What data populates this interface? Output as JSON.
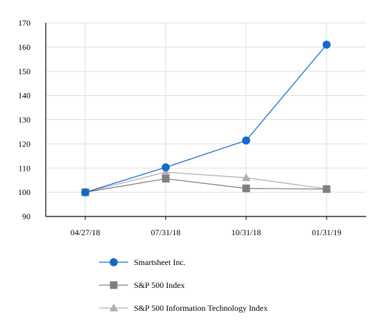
{
  "chart_data": {
    "type": "line",
    "categories": [
      "04/27/18",
      "07/31/18",
      "10/31/18",
      "01/31/19"
    ],
    "ylim": [
      90,
      170
    ],
    "yticks": [
      90,
      100,
      110,
      120,
      130,
      140,
      150,
      160,
      170
    ],
    "grid": true,
    "legend_position": "bottom",
    "series": [
      {
        "name": "Smartsheet Inc.",
        "values": [
          100,
          110.3,
          121.4,
          161.0
        ],
        "color": "#1569c7",
        "marker": "circle"
      },
      {
        "name": "S&P 500 Index",
        "values": [
          100,
          105.6,
          101.6,
          101.3
        ],
        "color": "#808080",
        "marker": "square"
      },
      {
        "name": "S&P 500 Information Technology Index",
        "values": [
          100,
          108.3,
          106.0,
          101.4
        ],
        "color": "#b0b0b0",
        "marker": "triangle"
      }
    ]
  }
}
